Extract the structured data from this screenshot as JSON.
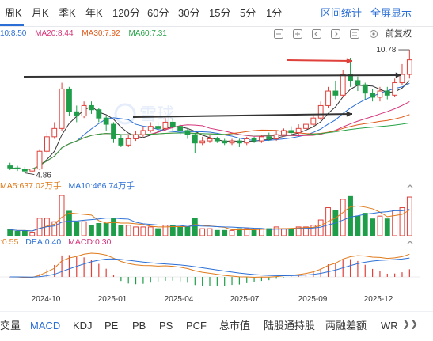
{
  "period_tabs": [
    {
      "label": "周K",
      "active": true
    },
    {
      "label": "月K",
      "active": false
    },
    {
      "label": "季K",
      "active": false
    },
    {
      "label": "年K",
      "active": false
    },
    {
      "label": "120分",
      "active": false
    },
    {
      "label": "60分",
      "active": false
    },
    {
      "label": "30分",
      "active": false
    },
    {
      "label": "15分",
      "active": false
    },
    {
      "label": "5分",
      "active": false
    },
    {
      "label": "1分",
      "active": false
    }
  ],
  "header_links": {
    "interval_stats": "区间统计",
    "fullscreen": "全屏显示"
  },
  "ma_legend": [
    {
      "label": "10:8.50",
      "color": "#2b6fd6"
    },
    {
      "label": "MA20:8.44",
      "color": "#d6347a"
    },
    {
      "label": "MA30:7.92",
      "color": "#e05a1a"
    },
    {
      "label": "MA60:7.31",
      "color": "#27a348"
    }
  ],
  "toolbar_icons": [
    "minus-icon",
    "plus-icon",
    "arrow-left-icon",
    "arrow-right-icon",
    "fold-icon",
    "settings-icon"
  ],
  "adjust_label": "前复权",
  "price_annotations": {
    "high": "10.78",
    "low": "4.86"
  },
  "watermark": "雪球",
  "volume_legend": {
    "ma5": "MA5:637.02万手",
    "ma10": "MA10:466.74万手",
    "ma5_color": "#e07a1a",
    "ma10_color": "#2b6fd6"
  },
  "macd_legend": {
    "dif": ":0.55",
    "dea": "DEA:0.40",
    "macd": "MACD:0.30",
    "dif_color": "#e07a1a",
    "dea_color": "#2b6fd6",
    "macd_color": "#d6347a"
  },
  "date_axis": [
    "2024-10",
    "2025-01",
    "2025-04",
    "2025-07",
    "2025-09",
    "2025-12"
  ],
  "bottom_tabs": [
    {
      "label": "交量",
      "active": false
    },
    {
      "label": "MACD",
      "active": true
    },
    {
      "label": "KDJ",
      "active": false
    },
    {
      "label": "PE",
      "active": false
    },
    {
      "label": "PB",
      "active": false
    },
    {
      "label": "PS",
      "active": false
    },
    {
      "label": "PCF",
      "active": false
    },
    {
      "label": "总市值",
      "active": false
    },
    {
      "label": "陆股通持股",
      "active": false
    },
    {
      "label": "两融差额",
      "active": false
    },
    {
      "label": "WR",
      "active": false
    }
  ],
  "colors": {
    "accent": "#2b6fd6",
    "up": "#e0403a",
    "down": "#1f9e4a",
    "arrow_black": "#333333",
    "arrow_red": "#e0403a"
  },
  "chart_data": {
    "type": "candlestick",
    "period": "weekly",
    "price_ylim": [
      4.5,
      11.2
    ],
    "x_labels": [
      "2024-10",
      "2025-01",
      "2025-04",
      "2025-07",
      "2025-09",
      "2025-12"
    ],
    "candles": [
      [
        5.2,
        5.1,
        5.35,
        5.0
      ],
      [
        5.1,
        5.05,
        5.2,
        4.95
      ],
      [
        5.05,
        4.95,
        5.15,
        4.86
      ],
      [
        4.95,
        5.05,
        5.1,
        4.9
      ],
      [
        5.05,
        5.9,
        6.0,
        5.0
      ],
      [
        5.9,
        6.6,
        6.8,
        5.8
      ],
      [
        6.6,
        7.0,
        7.3,
        6.5
      ],
      [
        7.0,
        8.9,
        9.2,
        6.9
      ],
      [
        8.9,
        7.8,
        9.0,
        7.6
      ],
      [
        7.8,
        7.6,
        8.1,
        7.3
      ],
      [
        7.6,
        8.1,
        8.3,
        7.5
      ],
      [
        8.1,
        7.9,
        8.3,
        7.7
      ],
      [
        7.9,
        7.5,
        8.0,
        7.3
      ],
      [
        7.5,
        7.2,
        7.6,
        6.9
      ],
      [
        7.2,
        6.5,
        7.3,
        6.3
      ],
      [
        6.5,
        6.2,
        6.7,
        6.1
      ],
      [
        6.2,
        6.5,
        6.7,
        6.1
      ],
      [
        6.5,
        6.7,
        6.9,
        6.4
      ],
      [
        6.7,
        6.9,
        7.1,
        6.6
      ],
      [
        6.9,
        7.1,
        7.3,
        6.8
      ],
      [
        7.1,
        7.0,
        7.3,
        6.9
      ],
      [
        7.0,
        7.3,
        7.5,
        6.9
      ],
      [
        7.3,
        7.1,
        7.5,
        6.9
      ],
      [
        7.1,
        6.9,
        7.2,
        6.7
      ],
      [
        6.9,
        6.7,
        7.0,
        6.5
      ],
      [
        6.7,
        6.3,
        6.8,
        5.8
      ],
      [
        6.3,
        6.4,
        6.6,
        6.2
      ],
      [
        6.4,
        6.5,
        6.7,
        6.3
      ],
      [
        6.5,
        6.4,
        6.6,
        6.3
      ],
      [
        6.4,
        6.3,
        6.5,
        6.2
      ],
      [
        6.3,
        6.4,
        6.5,
        6.2
      ],
      [
        6.4,
        6.3,
        6.5,
        6.1
      ],
      [
        6.3,
        6.5,
        6.6,
        6.2
      ],
      [
        6.5,
        6.4,
        6.6,
        6.3
      ],
      [
        6.4,
        6.6,
        6.7,
        6.3
      ],
      [
        6.6,
        6.5,
        6.8,
        6.4
      ],
      [
        6.5,
        6.7,
        6.9,
        6.4
      ],
      [
        6.7,
        6.9,
        7.0,
        6.6
      ],
      [
        6.9,
        6.8,
        7.1,
        6.7
      ],
      [
        6.8,
        7.0,
        7.2,
        6.7
      ],
      [
        7.0,
        7.2,
        7.4,
        6.9
      ],
      [
        7.2,
        7.5,
        7.7,
        7.1
      ],
      [
        7.5,
        8.1,
        8.3,
        7.4
      ],
      [
        8.1,
        8.8,
        9.0,
        8.0
      ],
      [
        8.8,
        8.6,
        9.3,
        8.4
      ],
      [
        8.6,
        9.6,
        9.8,
        8.5
      ],
      [
        9.6,
        9.3,
        10.4,
        9.0
      ],
      [
        9.3,
        9.1,
        9.5,
        8.8
      ],
      [
        9.1,
        8.7,
        9.2,
        8.4
      ],
      [
        8.7,
        8.5,
        8.9,
        8.3
      ],
      [
        8.5,
        8.8,
        9.0,
        8.3
      ],
      [
        8.8,
        8.6,
        9.0,
        8.4
      ],
      [
        8.6,
        9.2,
        9.4,
        8.5
      ],
      [
        9.2,
        9.6,
        10.1,
        9.1
      ],
      [
        9.6,
        10.3,
        10.78,
        9.4
      ]
    ],
    "annotations": {
      "high": 10.78,
      "low": 4.86
    },
    "volume_series": [
      {
        "name": "MA5",
        "value": "637.02万手"
      },
      {
        "name": "MA10",
        "value": "466.74万手"
      }
    ],
    "macd": {
      "dif": 0.55,
      "dea": 0.4,
      "macd": 0.3
    }
  }
}
